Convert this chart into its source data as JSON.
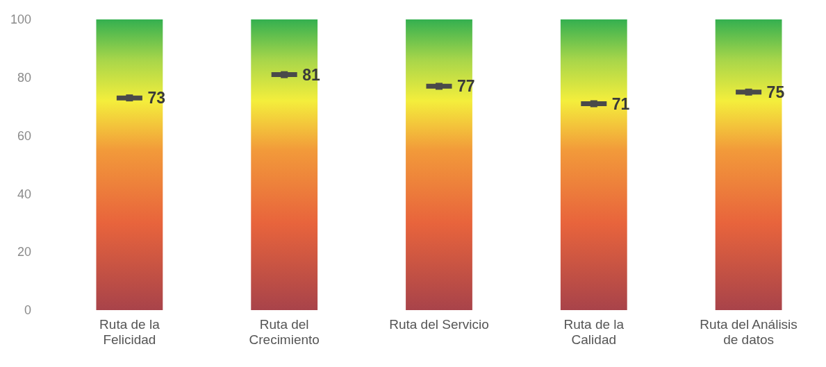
{
  "chart_data": {
    "type": "bar",
    "categories": [
      "Ruta de la Felicidad",
      "Ruta del Crecimiento",
      "Ruta del Servicio",
      "Ruta de la Calidad",
      "Ruta del Análisis de datos"
    ],
    "series": [
      {
        "type": "bar",
        "color": "#e8643c",
        "values": [
          100,
          100,
          100,
          100,
          100
        ]
      },
      {
        "type": "scatter",
        "color": "#4a4a4a",
        "x": [
          "Ruta de la Felicidad",
          "Ruta del Crecimiento",
          "Ruta del Servicio",
          "Ruta de la Calidad",
          "Ruta del Análisis de datos"
        ],
        "values": [
          73,
          81,
          77,
          71,
          75
        ],
        "data_labels": true
      }
    ],
    "ylim": [
      0,
      100
    ],
    "yticks": [
      0,
      20,
      40,
      60,
      80,
      100
    ],
    "grid": false,
    "marker": "square"
  }
}
